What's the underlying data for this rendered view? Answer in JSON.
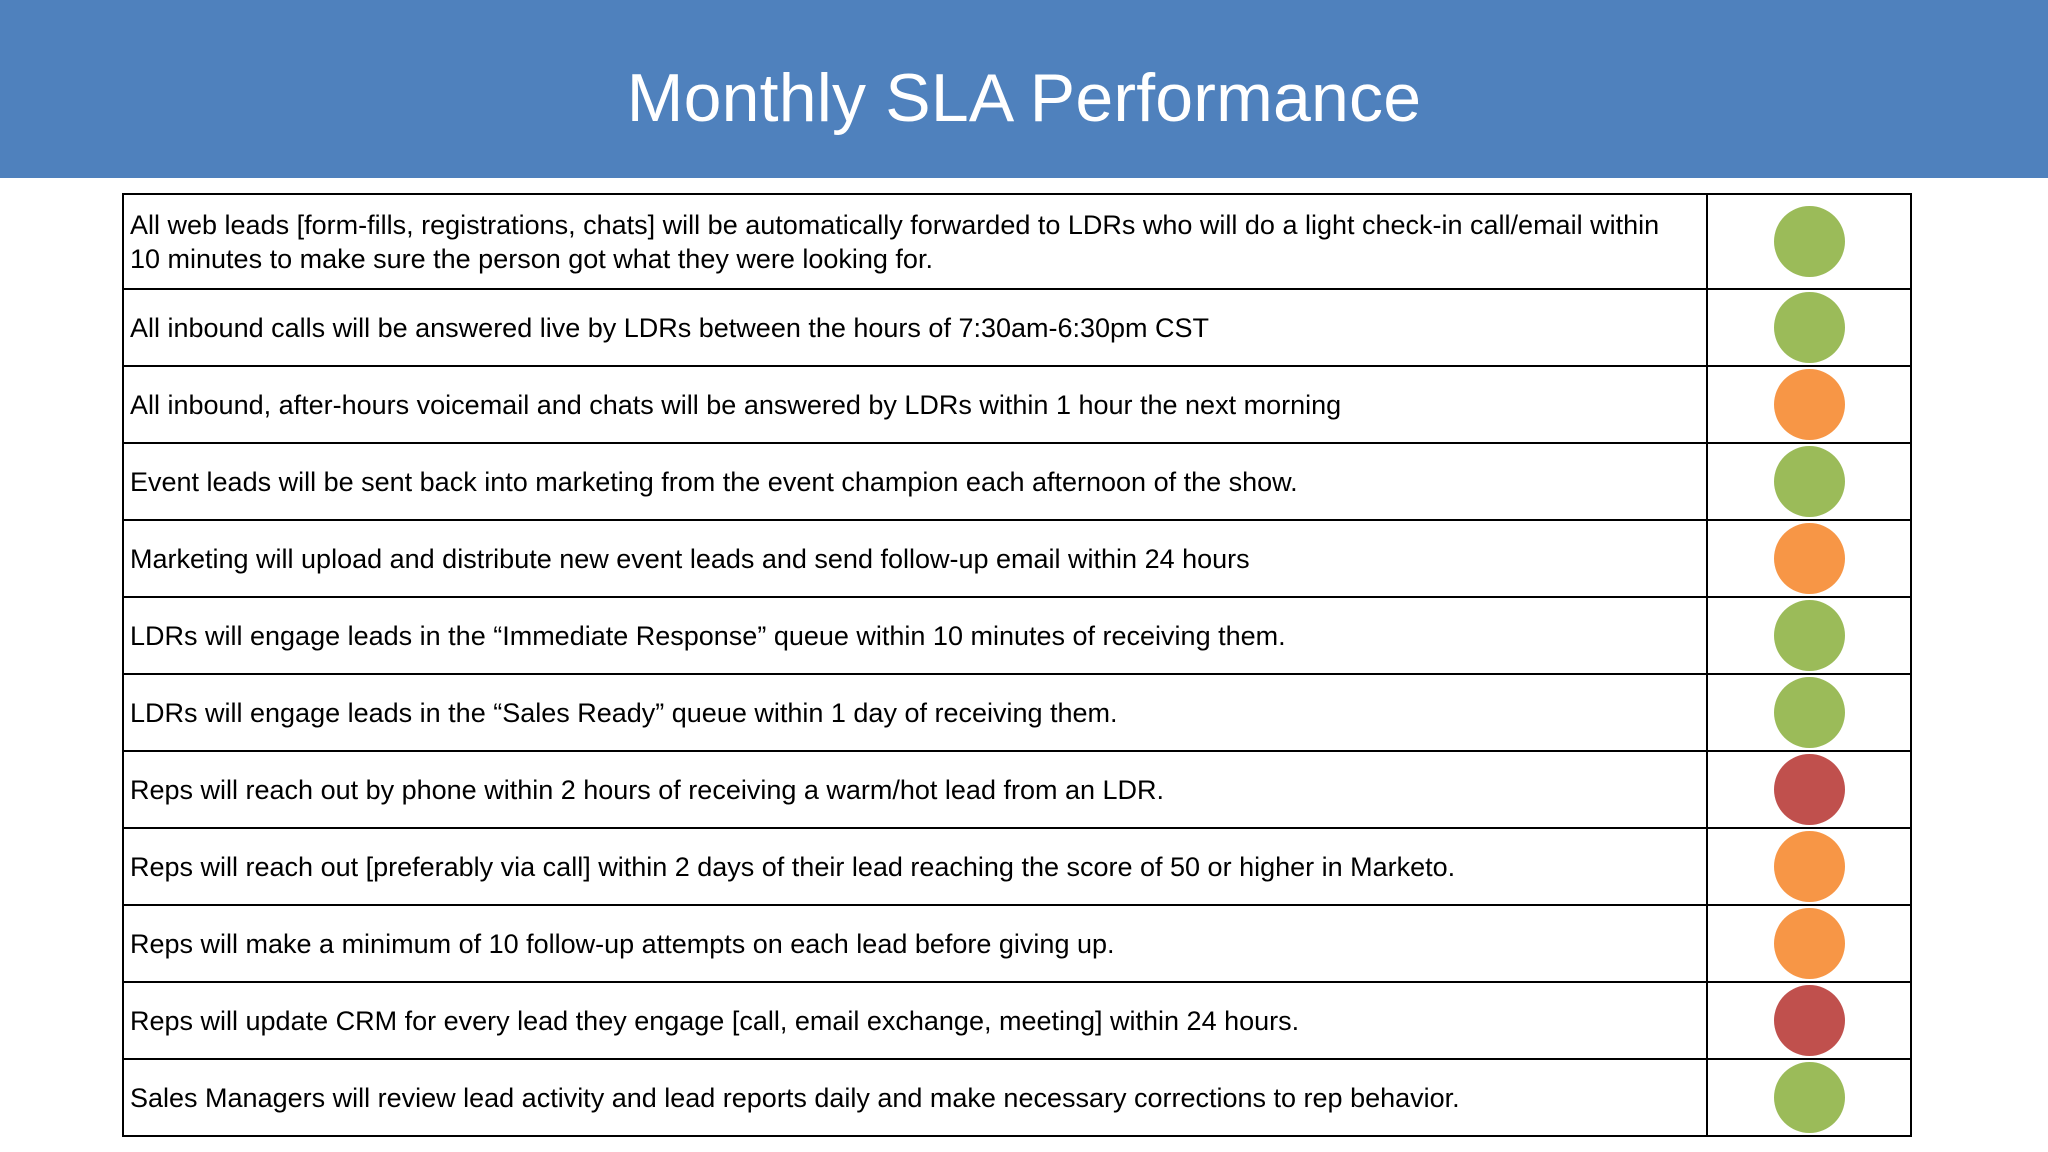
{
  "slide": {
    "title": "Monthly SLA Performance"
  },
  "colors": {
    "header_bg": "#4f81bd",
    "green": "#9bbb59",
    "orange": "#f79646",
    "red": "#c0504d"
  },
  "rows": [
    {
      "text": "All web leads [form-fills, registrations, chats] will be automatically forwarded to LDRs who will do a light check-in call/email within 10 minutes to make sure the person got what they were looking for.",
      "status": "green"
    },
    {
      "text": "All inbound calls will be answered live by LDRs between the hours of 7:30am-6:30pm CST",
      "status": "green"
    },
    {
      "text": "All inbound, after-hours voicemail and chats will be answered by LDRs within 1 hour the next morning",
      "status": "orange"
    },
    {
      "text": "Event leads will be sent back into marketing from the event champion each afternoon of the show.",
      "status": "green"
    },
    {
      "text": "Marketing will upload and distribute new event leads and send follow-up email within 24 hours",
      "status": "orange"
    },
    {
      "text": "LDRs will engage leads in the “Immediate Response” queue within 10 minutes of receiving them.",
      "status": "green"
    },
    {
      "text": "LDRs will engage leads in the “Sales Ready” queue within 1 day of receiving them.",
      "status": "green"
    },
    {
      "text": "Reps will reach out by phone within 2 hours of receiving a warm/hot lead from an LDR.",
      "status": "red"
    },
    {
      "text": "Reps will reach out [preferably via call] within 2 days of their lead reaching the score of 50 or higher in Marketo.",
      "status": "orange"
    },
    {
      "text": "Reps will make a minimum of 10 follow-up attempts on each lead before giving up.",
      "status": "orange"
    },
    {
      "text": "Reps will update CRM for every lead they engage [call, email exchange, meeting] within 24 hours.",
      "status": "red"
    },
    {
      "text": "Sales Managers will review lead activity and lead reports daily and make necessary corrections to rep behavior.",
      "status": "green"
    }
  ]
}
